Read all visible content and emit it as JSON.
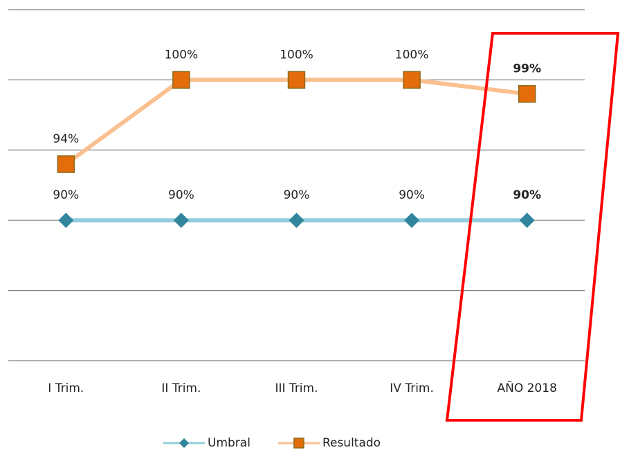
{
  "chart_data": {
    "type": "line",
    "categories": [
      "I Trim.",
      "II Trim.",
      "III Trim.",
      "IV Trim.",
      "AÑO 2018"
    ],
    "series": [
      {
        "name": "Umbral",
        "color": "#93cddd",
        "marker": "diamond",
        "marker_color": "#31859c",
        "values": [
          90,
          90,
          90,
          90,
          90
        ],
        "value_labels": [
          "90%",
          "90%",
          "90%",
          "90%",
          "90%"
        ]
      },
      {
        "name": "Resultado",
        "color": "#fac090",
        "marker": "square",
        "marker_color": "#e46c0a",
        "values": [
          94,
          100,
          100,
          100,
          99
        ],
        "value_labels": [
          "94%",
          "100%",
          "100%",
          "100%",
          "99%"
        ]
      }
    ],
    "ylim": [
      80,
      105
    ],
    "yticks": [
      80,
      85,
      90,
      95,
      100,
      105
    ],
    "grid": true,
    "legend": "bottom"
  }
}
